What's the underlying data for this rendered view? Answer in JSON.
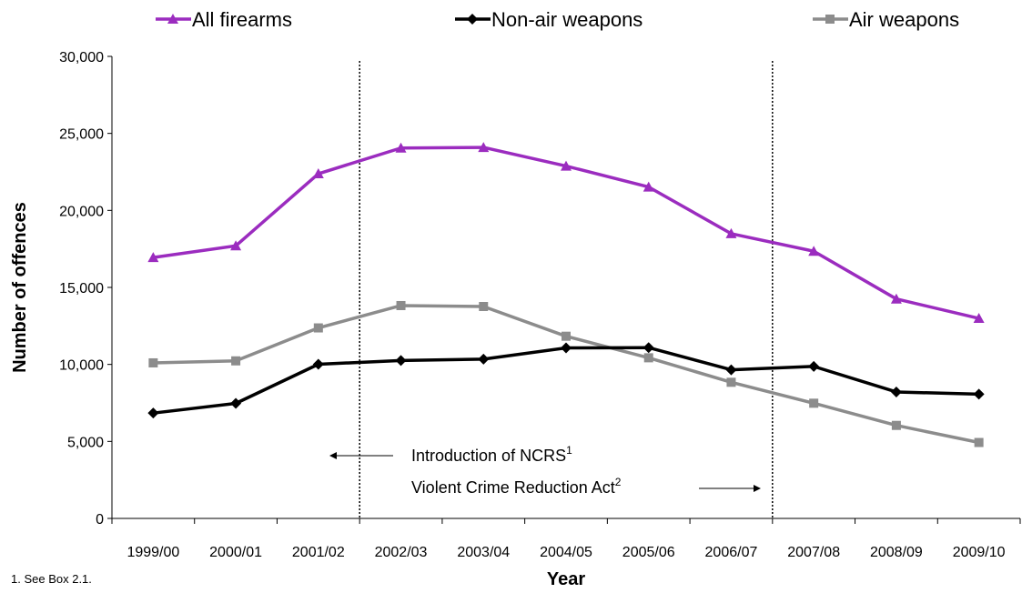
{
  "chart_data": {
    "type": "line",
    "title": "",
    "xlabel": "Year",
    "ylabel": "Number of offences",
    "categories": [
      "1999/00",
      "2000/01",
      "2001/02",
      "2002/03",
      "2003/04",
      "2004/05",
      "2005/06",
      "2006/07",
      "2007/08",
      "2008/09",
      "2009/10"
    ],
    "ylim": [
      0,
      30000
    ],
    "yticks": [
      0,
      5000,
      10000,
      15000,
      20000,
      25000,
      30000
    ],
    "ytick_labels": [
      "0",
      "5,000",
      "10,000",
      "15,000",
      "20,000",
      "25,000",
      "30,000"
    ],
    "grid": false,
    "legend_position": "top",
    "series": [
      {
        "name": "All firearms",
        "color": "#9b2cbf",
        "marker": "triangle",
        "values": [
          16940,
          17700,
          22380,
          24050,
          24090,
          22880,
          21520,
          18490,
          17350,
          14250,
          12990
        ]
      },
      {
        "name": "Non-air weapons",
        "color": "#000000",
        "marker": "diamond",
        "values": [
          6840,
          7470,
          10010,
          10250,
          10340,
          11070,
          11090,
          9650,
          9870,
          8210,
          8070
        ]
      },
      {
        "name": "Air weapons",
        "color": "#8c8c8c",
        "marker": "square",
        "values": [
          10100,
          10230,
          12370,
          13820,
          13760,
          11830,
          10430,
          8840,
          7480,
          6040,
          4930
        ]
      }
    ],
    "vlines": [
      {
        "after_category": "2001/02",
        "style": "dotted"
      },
      {
        "after_category": "2006/07",
        "style": "dotted"
      }
    ],
    "annotations": [
      {
        "text": "Introduction of NCRS",
        "sup": "1",
        "arrow": "left"
      },
      {
        "text": "Violent Crime Reduction Act",
        "sup": "2",
        "arrow": "right"
      }
    ]
  },
  "footnote": "1. See Box 2.1."
}
